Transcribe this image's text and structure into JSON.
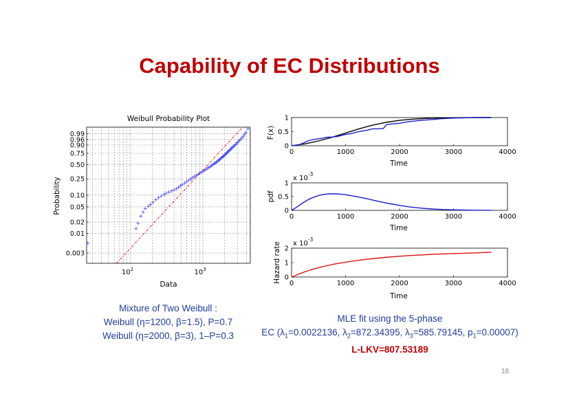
{
  "slide": {
    "title": "Capability of EC Distributions",
    "page_number": "18"
  },
  "left_caption": {
    "line1": "Mixture of Two Weibull :",
    "line2": "Weibull (η=1200, β=1.5), P=0.7",
    "line3": "Weibull (η=2000, β=3), 1–P=0.3"
  },
  "right_caption": {
    "line1": "MLE fit using the 5-phase",
    "line2_prefix": "EC (",
    "l1_sym": "λ",
    "l1_sub": "1",
    "l1_val": "=0.0022136, ",
    "l2_sym": "λ",
    "l2_sub": "2",
    "l2_val": "=872.34395, ",
    "l3_sym": "λ",
    "l3_sub": "3",
    "l3_val": "=585.79145, ",
    "p1_sym": "p",
    "p1_sub": "1",
    "p1_val": "=0.00007)",
    "line3": "L-LKV=807.53189"
  },
  "colors": {
    "title": "#c00000",
    "caption": "#1f3c9a",
    "red": "#c00000",
    "blue": "#0000cc",
    "black": "#000000"
  },
  "chart_data": [
    {
      "type": "scatter",
      "title": "Weibull Probability Plot",
      "xlabel": "Data",
      "ylabel": "Probability",
      "x_scale": "log",
      "xlim": [
        25,
        4500
      ],
      "x_ticks": [
        {
          "base": "10",
          "exp": "2",
          "value": 100
        },
        {
          "base": "10",
          "exp": "3",
          "value": 1000
        }
      ],
      "y_scale": "weibull",
      "ylim": [
        0.0016,
        0.999
      ],
      "y_ticks": [
        "0.99",
        "0.96",
        "0.90",
        "0.75",
        "0.50",
        "0.25",
        "0.10",
        "0.05",
        "0.02",
        "0.01",
        "0.003"
      ],
      "y_tick_values": [
        0.99,
        0.96,
        0.9,
        0.75,
        0.5,
        0.25,
        0.1,
        0.05,
        0.02,
        0.01,
        0.003
      ],
      "grid": true,
      "reference_line": {
        "style": "dash-dot",
        "color": "red",
        "x": [
          25,
          4500
        ],
        "y": [
          0.00022,
          0.99999
        ]
      },
      "points": [
        [
          26,
          0.0055
        ],
        [
          120,
          0.0135
        ],
        [
          128,
          0.0185
        ],
        [
          140,
          0.0285
        ],
        [
          150,
          0.0365
        ],
        [
          160,
          0.045
        ],
        [
          178,
          0.052
        ],
        [
          190,
          0.058
        ],
        [
          205,
          0.066
        ],
        [
          225,
          0.077
        ],
        [
          245,
          0.086
        ],
        [
          265,
          0.095
        ],
        [
          290,
          0.104
        ],
        [
          310,
          0.112
        ],
        [
          340,
          0.12
        ],
        [
          370,
          0.128
        ],
        [
          400,
          0.136
        ],
        [
          430,
          0.144
        ],
        [
          460,
          0.158
        ],
        [
          490,
          0.17
        ],
        [
          520,
          0.183
        ],
        [
          560,
          0.2
        ],
        [
          600,
          0.216
        ],
        [
          640,
          0.233
        ],
        [
          680,
          0.25
        ],
        [
          720,
          0.266
        ],
        [
          760,
          0.283
        ],
        [
          810,
          0.3
        ],
        [
          860,
          0.318
        ],
        [
          910,
          0.335
        ],
        [
          960,
          0.352
        ],
        [
          1010,
          0.37
        ],
        [
          1060,
          0.388
        ],
        [
          1110,
          0.405
        ],
        [
          1160,
          0.423
        ],
        [
          1210,
          0.44
        ],
        [
          1260,
          0.458
        ],
        [
          1310,
          0.475
        ],
        [
          1360,
          0.493
        ],
        [
          1410,
          0.51
        ],
        [
          1460,
          0.528
        ],
        [
          1510,
          0.545
        ],
        [
          1560,
          0.563
        ],
        [
          1610,
          0.58
        ],
        [
          1660,
          0.598
        ],
        [
          1710,
          0.615
        ],
        [
          1760,
          0.632
        ],
        [
          1810,
          0.65
        ],
        [
          1860,
          0.667
        ],
        [
          1910,
          0.684
        ],
        [
          1960,
          0.7
        ],
        [
          2010,
          0.717
        ],
        [
          2060,
          0.734
        ],
        [
          2110,
          0.75
        ],
        [
          2160,
          0.766
        ],
        [
          2220,
          0.782
        ],
        [
          2280,
          0.798
        ],
        [
          2340,
          0.814
        ],
        [
          2400,
          0.83
        ],
        [
          2470,
          0.845
        ],
        [
          2540,
          0.86
        ],
        [
          2620,
          0.875
        ],
        [
          2700,
          0.89
        ],
        [
          2790,
          0.904
        ],
        [
          2880,
          0.917
        ],
        [
          2980,
          0.93
        ],
        [
          3080,
          0.942
        ],
        [
          3200,
          0.954
        ],
        [
          3330,
          0.964
        ],
        [
          3460,
          0.973
        ],
        [
          3600,
          0.981
        ],
        [
          3750,
          0.988
        ],
        [
          3900,
          0.993
        ],
        [
          4200,
          0.998
        ]
      ]
    },
    {
      "type": "line",
      "ylabel": "F(x)",
      "xlabel": "Time",
      "xlim": [
        0,
        4000
      ],
      "ylim": [
        0,
        1
      ],
      "x_ticks": [
        "0",
        "1000",
        "2000",
        "3000",
        "4000"
      ],
      "y_ticks": [
        "0",
        "0.5",
        "1"
      ],
      "series": [
        {
          "name": "fitted",
          "color": "black",
          "x": [
            0,
            250,
            500,
            750,
            1000,
            1250,
            1500,
            1750,
            2000,
            2250,
            2500,
            2750,
            3000,
            3250,
            3500,
            3700
          ],
          "y": [
            0,
            0.065,
            0.17,
            0.3,
            0.45,
            0.6,
            0.73,
            0.83,
            0.9,
            0.945,
            0.97,
            0.985,
            0.993,
            0.997,
            0.999,
            1.0
          ]
        },
        {
          "name": "empirical",
          "color": "blue",
          "x": [
            0,
            120,
            200,
            300,
            400,
            500,
            550,
            650,
            750,
            850,
            1000,
            1100,
            1200,
            1300,
            1400,
            1500,
            1600,
            1700,
            1750,
            1800,
            2000,
            2200,
            2400,
            2600,
            2800,
            3000,
            3200,
            3400,
            3700
          ],
          "y": [
            0,
            0.02,
            0.08,
            0.17,
            0.22,
            0.25,
            0.26,
            0.3,
            0.31,
            0.33,
            0.4,
            0.43,
            0.48,
            0.52,
            0.55,
            0.6,
            0.6,
            0.61,
            0.74,
            0.76,
            0.8,
            0.86,
            0.9,
            0.93,
            0.96,
            0.98,
            0.99,
            1.0,
            1.0
          ]
        }
      ]
    },
    {
      "type": "line",
      "ylabel": "pdf",
      "xlabel": "Time",
      "scale_label": {
        "base": "x 10",
        "exp": "-3"
      },
      "xlim": [
        0,
        4000
      ],
      "ylim": [
        0,
        1
      ],
      "x_ticks": [
        "0",
        "1000",
        "2000",
        "3000",
        "4000"
      ],
      "y_ticks": [
        "0",
        "0.5",
        "1"
      ],
      "series": [
        {
          "name": "pdf",
          "color": "blue",
          "x": [
            0,
            100,
            200,
            300,
            400,
            500,
            600,
            700,
            800,
            900,
            1000,
            1200,
            1400,
            1600,
            1800,
            2000,
            2200,
            2400,
            2600,
            2800,
            3000,
            3200,
            3400,
            3700
          ],
          "y": [
            0,
            0.12,
            0.26,
            0.38,
            0.47,
            0.54,
            0.58,
            0.6,
            0.6,
            0.59,
            0.57,
            0.5,
            0.42,
            0.33,
            0.25,
            0.18,
            0.12,
            0.08,
            0.05,
            0.03,
            0.02,
            0.01,
            0.006,
            0.003
          ]
        }
      ]
    },
    {
      "type": "line",
      "ylabel": "Hazard rate",
      "xlabel": "Time",
      "scale_label": {
        "base": "x 10",
        "exp": "-3"
      },
      "xlim": [
        0,
        4000
      ],
      "ylim": [
        0,
        2
      ],
      "x_ticks": [
        "0",
        "1000",
        "2000",
        "3000",
        "4000"
      ],
      "y_ticks": [
        "0",
        "1",
        "2"
      ],
      "series": [
        {
          "name": "hazard",
          "color": "red",
          "x": [
            0,
            100,
            200,
            300,
            400,
            500,
            600,
            800,
            1000,
            1200,
            1400,
            1600,
            1800,
            2000,
            2200,
            2400,
            2600,
            2800,
            3000,
            3200,
            3400,
            3700
          ],
          "y": [
            0,
            0.15,
            0.3,
            0.43,
            0.55,
            0.65,
            0.74,
            0.9,
            1.03,
            1.14,
            1.23,
            1.31,
            1.38,
            1.44,
            1.49,
            1.53,
            1.57,
            1.6,
            1.63,
            1.65,
            1.67,
            1.72
          ]
        }
      ]
    }
  ]
}
